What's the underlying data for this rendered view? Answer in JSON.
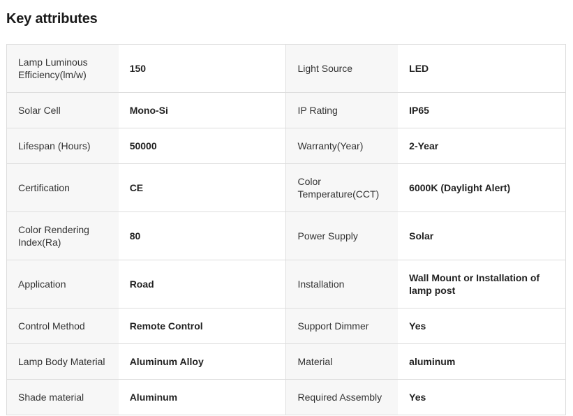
{
  "title": "Key attributes",
  "rows": [
    [
      {
        "k": "Lamp Luminous Efficiency(lm/w)",
        "v": "150"
      },
      {
        "k": "Light Source",
        "v": "LED"
      }
    ],
    [
      {
        "k": "Solar Cell",
        "v": "Mono-Si"
      },
      {
        "k": "IP Rating",
        "v": "IP65"
      }
    ],
    [
      {
        "k": "Lifespan (Hours)",
        "v": "50000"
      },
      {
        "k": "Warranty(Year)",
        "v": "2-Year"
      }
    ],
    [
      {
        "k": "Certification",
        "v": "CE"
      },
      {
        "k": "Color Temperature(CCT)",
        "v": "6000K (Daylight Alert)"
      }
    ],
    [
      {
        "k": "Color Rendering Index(Ra)",
        "v": "80"
      },
      {
        "k": "Power Supply",
        "v": "Solar"
      }
    ],
    [
      {
        "k": "Application",
        "v": "Road"
      },
      {
        "k": "Installation",
        "v": "Wall Mount or Installation of lamp post"
      }
    ],
    [
      {
        "k": "Control Method",
        "v": "Remote Control"
      },
      {
        "k": "Support Dimmer",
        "v": "Yes"
      }
    ],
    [
      {
        "k": "Lamp Body Material",
        "v": "Aluminum Alloy"
      },
      {
        "k": "Material",
        "v": "aluminum"
      }
    ],
    [
      {
        "k": "Shade material",
        "v": "Aluminum"
      },
      {
        "k": "Required Assembly",
        "v": "Yes"
      }
    ]
  ]
}
